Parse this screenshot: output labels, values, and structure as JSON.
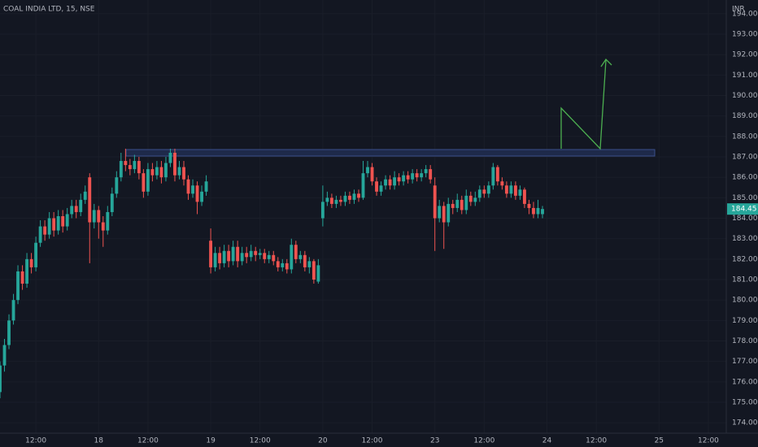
{
  "chart_data": {
    "type": "candlestick",
    "title": "COAL INDIA LTD, 15, NSE",
    "currency": "INR",
    "up_color": "#26a69a",
    "down_color": "#ef5350",
    "grid": true,
    "xlim": [
      -22,
      140
    ],
    "ylim": [
      173.49,
      194.67
    ],
    "xticks": [
      {
        "value": -14,
        "label": "12:00"
      },
      {
        "value": 0,
        "label": "18"
      },
      {
        "value": 11,
        "label": "12:00"
      },
      {
        "value": 25,
        "label": "19"
      },
      {
        "value": 36,
        "label": "12:00"
      },
      {
        "value": 50,
        "label": "20"
      },
      {
        "value": 61,
        "label": "12:00"
      },
      {
        "value": 75,
        "label": "23"
      },
      {
        "value": 86,
        "label": "12:00"
      },
      {
        "value": 100,
        "label": "24"
      },
      {
        "value": 111,
        "label": "12:00"
      },
      {
        "value": 125,
        "label": "25"
      },
      {
        "value": 136,
        "label": "12:00"
      }
    ],
    "yticks": [
      {
        "value": 174,
        "label": "174.00"
      },
      {
        "value": 175,
        "label": "175.00"
      },
      {
        "value": 176,
        "label": "176.00"
      },
      {
        "value": 177,
        "label": "177.00"
      },
      {
        "value": 178,
        "label": "178.00"
      },
      {
        "value": 179,
        "label": "179.00"
      },
      {
        "value": 180,
        "label": "180.00"
      },
      {
        "value": 181,
        "label": "181.00"
      },
      {
        "value": 182,
        "label": "182.00"
      },
      {
        "value": 183,
        "label": "183.00"
      },
      {
        "value": 184,
        "label": "184.00"
      },
      {
        "value": 185,
        "label": "185.00"
      },
      {
        "value": 186,
        "label": "186.00"
      },
      {
        "value": 187,
        "label": "187.00"
      },
      {
        "value": 188,
        "label": "188.00"
      },
      {
        "value": 189,
        "label": "189.00"
      },
      {
        "value": 190,
        "label": "190.00"
      },
      {
        "value": 191,
        "label": "191.00"
      },
      {
        "value": 192,
        "label": "192.00"
      },
      {
        "value": 193,
        "label": "193.00"
      },
      {
        "value": 194,
        "label": "194.00"
      }
    ],
    "x": [
      -22,
      -21,
      -20,
      -19,
      -18,
      -17,
      -16,
      -15,
      -14,
      -13,
      -12,
      -11,
      -10,
      -9,
      -8,
      -7,
      -6,
      -5,
      -4,
      -3,
      -2,
      -1,
      0,
      1,
      2,
      3,
      4,
      5,
      6,
      7,
      8,
      9,
      10,
      11,
      12,
      13,
      14,
      15,
      16,
      17,
      18,
      19,
      20,
      21,
      22,
      23,
      24,
      25,
      26,
      27,
      28,
      29,
      30,
      31,
      32,
      33,
      34,
      35,
      36,
      37,
      38,
      39,
      40,
      41,
      42,
      43,
      44,
      45,
      46,
      47,
      48,
      49,
      50,
      51,
      52,
      53,
      54,
      55,
      56,
      57,
      58,
      59,
      60,
      61,
      62,
      63,
      64,
      65,
      66,
      67,
      68,
      69,
      70,
      71,
      72,
      73,
      74,
      75,
      76,
      77,
      78,
      79,
      80,
      81,
      82,
      83,
      84,
      85,
      86,
      87,
      88,
      89,
      90,
      91,
      92,
      93,
      94,
      95,
      96,
      97,
      98,
      99
    ],
    "open": [
      175.5,
      176.8,
      177.8,
      179.0,
      180.0,
      181.4,
      180.8,
      182.0,
      181.6,
      182.8,
      183.6,
      183.2,
      184.0,
      183.4,
      184.1,
      183.6,
      184.2,
      184.6,
      184.3,
      184.9,
      186.0,
      183.8,
      184.4,
      183.8,
      183.4,
      184.3,
      185.2,
      186.0,
      186.8,
      186.6,
      186.4,
      186.8,
      186.2,
      185.3,
      186.4,
      186.1,
      186.5,
      186.0,
      186.7,
      187.2,
      186.1,
      186.5,
      185.9,
      185.2,
      185.6,
      184.8,
      185.3,
      182.9,
      181.6,
      182.3,
      181.8,
      182.4,
      181.9,
      182.6,
      181.9,
      182.3,
      182.1,
      182.4,
      182.2,
      182.3,
      182.0,
      182.2,
      181.9,
      181.6,
      181.8,
      181.5,
      182.7,
      182.0,
      182.2,
      181.6,
      181.9,
      180.9,
      184.0,
      184.8,
      185.0,
      184.7,
      184.9,
      184.8,
      185.1,
      184.9,
      185.2,
      185.0,
      186.2,
      186.5,
      185.8,
      185.3,
      185.6,
      185.9,
      185.6,
      186.0,
      185.8,
      186.1,
      185.9,
      186.2,
      186.0,
      186.2,
      186.4,
      185.6,
      184.0,
      184.6,
      183.8,
      184.7,
      184.5,
      184.9,
      184.4,
      185.1,
      184.8,
      185.0,
      185.4,
      185.2,
      185.6,
      186.5,
      185.8,
      185.6,
      185.2,
      185.6,
      185.1,
      185.4,
      184.7,
      184.5,
      184.2,
      184.2
    ],
    "high": [
      177.0,
      178.1,
      179.3,
      180.3,
      181.7,
      181.7,
      182.3,
      182.3,
      183.1,
      183.9,
      183.9,
      184.3,
      184.3,
      184.4,
      184.4,
      184.5,
      184.9,
      184.9,
      185.2,
      185.6,
      186.2,
      184.7,
      184.6,
      184.1,
      184.6,
      185.5,
      186.3,
      187.2,
      187.4,
      186.9,
      187.1,
      187.0,
      186.4,
      186.7,
      186.7,
      186.8,
      186.8,
      187.0,
      187.4,
      187.4,
      186.8,
      186.8,
      186.1,
      185.9,
      185.8,
      185.6,
      186.1,
      183.5,
      182.6,
      182.6,
      182.7,
      182.7,
      182.9,
      182.9,
      182.6,
      182.6,
      182.7,
      182.6,
      182.5,
      182.5,
      182.4,
      182.4,
      182.1,
      182.0,
      182.0,
      183.0,
      182.9,
      182.4,
      182.4,
      182.1,
      182.0,
      182.0,
      185.6,
      185.3,
      185.2,
      185.1,
      185.1,
      185.3,
      185.3,
      185.4,
      185.4,
      186.8,
      186.8,
      186.7,
      186.0,
      185.8,
      186.1,
      186.1,
      186.3,
      186.2,
      186.3,
      186.3,
      186.4,
      186.4,
      186.4,
      186.6,
      186.6,
      186.0,
      184.9,
      184.8,
      185.0,
      184.9,
      185.2,
      185.1,
      185.4,
      185.3,
      185.3,
      185.6,
      185.6,
      185.8,
      186.7,
      186.6,
      186.0,
      185.8,
      185.8,
      185.8,
      185.6,
      185.5,
      184.9,
      184.8,
      184.9,
      184.6
    ],
    "low": [
      175.2,
      176.5,
      177.6,
      178.8,
      179.8,
      180.5,
      180.6,
      181.3,
      181.4,
      182.6,
      182.9,
      183.0,
      183.1,
      183.2,
      183.3,
      183.4,
      184.0,
      184.0,
      184.1,
      184.7,
      181.8,
      183.5,
      183.0,
      182.6,
      183.2,
      184.1,
      185.0,
      185.8,
      186.3,
      186.1,
      186.2,
      185.9,
      185.0,
      185.1,
      185.8,
      185.9,
      185.7,
      185.8,
      186.5,
      185.8,
      185.9,
      185.6,
      184.9,
      185.0,
      184.2,
      184.6,
      185.1,
      181.3,
      181.4,
      181.5,
      181.6,
      181.6,
      181.7,
      181.6,
      181.7,
      181.8,
      181.9,
      181.9,
      182.0,
      181.8,
      181.8,
      181.7,
      181.4,
      181.4,
      181.3,
      181.3,
      181.8,
      181.8,
      181.4,
      181.3,
      180.8,
      180.8,
      183.6,
      184.6,
      184.5,
      184.5,
      184.6,
      184.6,
      184.7,
      184.7,
      184.8,
      184.9,
      186.0,
      185.6,
      185.1,
      185.1,
      185.4,
      185.4,
      185.4,
      185.6,
      185.6,
      185.7,
      185.7,
      185.8,
      185.8,
      186.0,
      185.7,
      182.4,
      183.8,
      182.5,
      183.6,
      184.2,
      184.3,
      184.2,
      184.2,
      184.6,
      184.6,
      184.8,
      185.0,
      185.0,
      185.4,
      185.6,
      185.4,
      185.0,
      185.0,
      184.9,
      184.9,
      184.5,
      184.2,
      184.0,
      184.0,
      184.0
    ],
    "close": [
      176.8,
      177.8,
      179.0,
      180.0,
      181.4,
      180.8,
      182.0,
      181.6,
      182.8,
      183.6,
      183.2,
      184.0,
      183.4,
      184.1,
      183.6,
      184.2,
      184.6,
      184.3,
      184.9,
      185.3,
      183.8,
      184.4,
      183.8,
      183.4,
      184.3,
      185.2,
      186.0,
      186.8,
      186.6,
      186.4,
      186.8,
      186.2,
      185.3,
      186.4,
      186.1,
      186.5,
      186.0,
      186.7,
      187.2,
      186.1,
      186.5,
      185.9,
      185.2,
      185.6,
      184.8,
      185.3,
      185.8,
      181.6,
      182.3,
      181.8,
      182.4,
      181.9,
      182.6,
      181.9,
      182.3,
      182.1,
      182.4,
      182.2,
      182.3,
      182.0,
      182.2,
      181.9,
      181.6,
      181.8,
      181.5,
      182.7,
      182.0,
      182.2,
      181.6,
      181.9,
      181.0,
      181.7,
      184.8,
      185.0,
      184.7,
      184.9,
      184.8,
      185.1,
      184.9,
      185.2,
      185.0,
      186.2,
      186.5,
      185.8,
      185.3,
      185.6,
      185.9,
      185.6,
      186.0,
      185.8,
      186.1,
      185.9,
      186.2,
      186.0,
      186.2,
      186.4,
      185.9,
      184.0,
      184.6,
      183.8,
      184.7,
      184.5,
      184.9,
      184.4,
      185.1,
      184.8,
      185.0,
      185.4,
      185.2,
      185.6,
      186.5,
      185.8,
      185.6,
      185.2,
      185.6,
      185.1,
      185.4,
      184.7,
      184.5,
      184.2,
      184.5,
      184.45
    ]
  }
}
